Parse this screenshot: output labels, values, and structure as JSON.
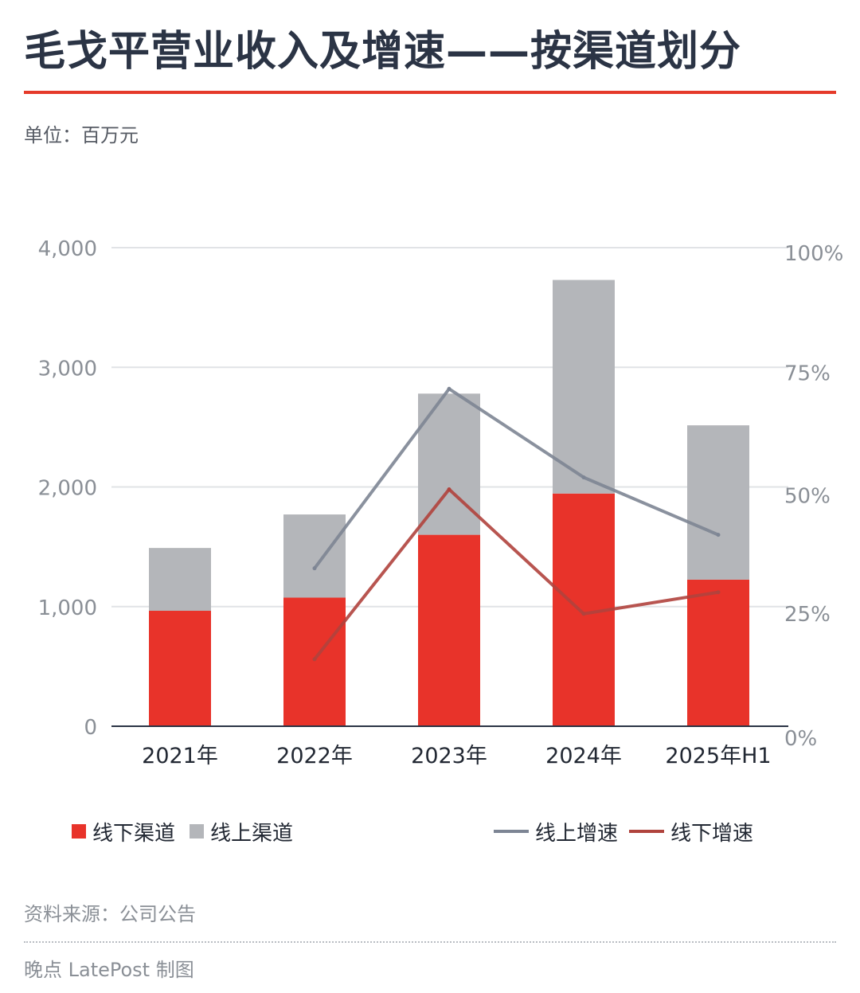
{
  "title": "毛戈平营业收入及增速——按渠道划分",
  "unit": "单位：百万元",
  "source": "资料来源：公司公告",
  "credit": "晚点 LatePost 制图",
  "colors": {
    "offline": "#e8332a",
    "online": "#b4b6ba",
    "online_growth": "#7d8594",
    "offline_growth": "#b0433d",
    "accent_rule": "#e53a2a"
  },
  "legend": {
    "offline_channel": "线下渠道",
    "online_channel": "线上渠道",
    "online_growth": "线上增速",
    "offline_growth": "线下增速"
  },
  "chart_data": {
    "type": "bar",
    "stacked": true,
    "categories": [
      "2021年",
      "2022年",
      "2023年",
      "2024年",
      "2025年H1"
    ],
    "series": [
      {
        "name": "线下渠道",
        "type": "bar",
        "axis": "left",
        "values": [
          965,
          1075,
          1600,
          1945,
          1225
        ]
      },
      {
        "name": "线上渠道",
        "type": "bar",
        "axis": "left",
        "values": [
          525,
          695,
          1180,
          1785,
          1290
        ]
      },
      {
        "name": "线上增速",
        "type": "line",
        "axis": "right",
        "values": [
          null,
          33,
          70.5,
          52,
          40
        ]
      },
      {
        "name": "线下增速",
        "type": "line",
        "axis": "right",
        "values": [
          null,
          14,
          49.5,
          23.5,
          28
        ]
      }
    ],
    "left_axis": {
      "ylim": [
        0,
        4000
      ],
      "ticks": [
        "0",
        "1,000",
        "2,000",
        "3,000",
        "4,000"
      ]
    },
    "right_axis": {
      "ylim": [
        0,
        100
      ],
      "ticks": [
        "0%",
        "25%",
        "50%",
        "75%",
        "100%"
      ]
    },
    "grid": true,
    "legend_position": "bottom"
  }
}
